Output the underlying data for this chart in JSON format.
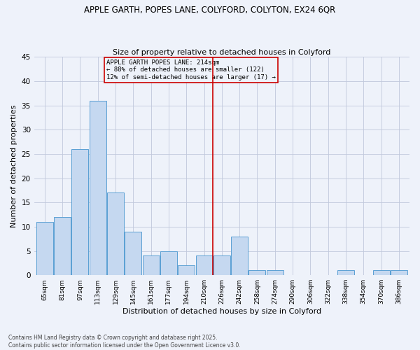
{
  "title1": "APPLE GARTH, POPES LANE, COLYFORD, COLYTON, EX24 6QR",
  "title2": "Size of property relative to detached houses in Colyford",
  "xlabel": "Distribution of detached houses by size in Colyford",
  "ylabel": "Number of detached properties",
  "footer1": "Contains HM Land Registry data © Crown copyright and database right 2025.",
  "footer2": "Contains public sector information licensed under the Open Government Licence v3.0.",
  "categories": [
    "65sqm",
    "81sqm",
    "97sqm",
    "113sqm",
    "129sqm",
    "145sqm",
    "161sqm",
    "177sqm",
    "194sqm",
    "210sqm",
    "226sqm",
    "242sqm",
    "258sqm",
    "274sqm",
    "290sqm",
    "306sqm",
    "322sqm",
    "338sqm",
    "354sqm",
    "370sqm",
    "386sqm"
  ],
  "values": [
    11,
    12,
    26,
    36,
    17,
    9,
    4,
    5,
    2,
    4,
    4,
    8,
    1,
    1,
    0,
    0,
    0,
    1,
    0,
    1,
    1
  ],
  "bar_color": "#c5d8f0",
  "bar_edge_color": "#5a9fd4",
  "bg_color": "#eef2fa",
  "annotation_text": "APPLE GARTH POPES LANE: 214sqm\n← 88% of detached houses are smaller (122)\n12% of semi-detached houses are larger (17) →",
  "vline_x_index": 9.5,
  "annotation_box_color": "#cc0000",
  "ylim": [
    0,
    45
  ],
  "yticks": [
    0,
    5,
    10,
    15,
    20,
    25,
    30,
    35,
    40,
    45
  ]
}
